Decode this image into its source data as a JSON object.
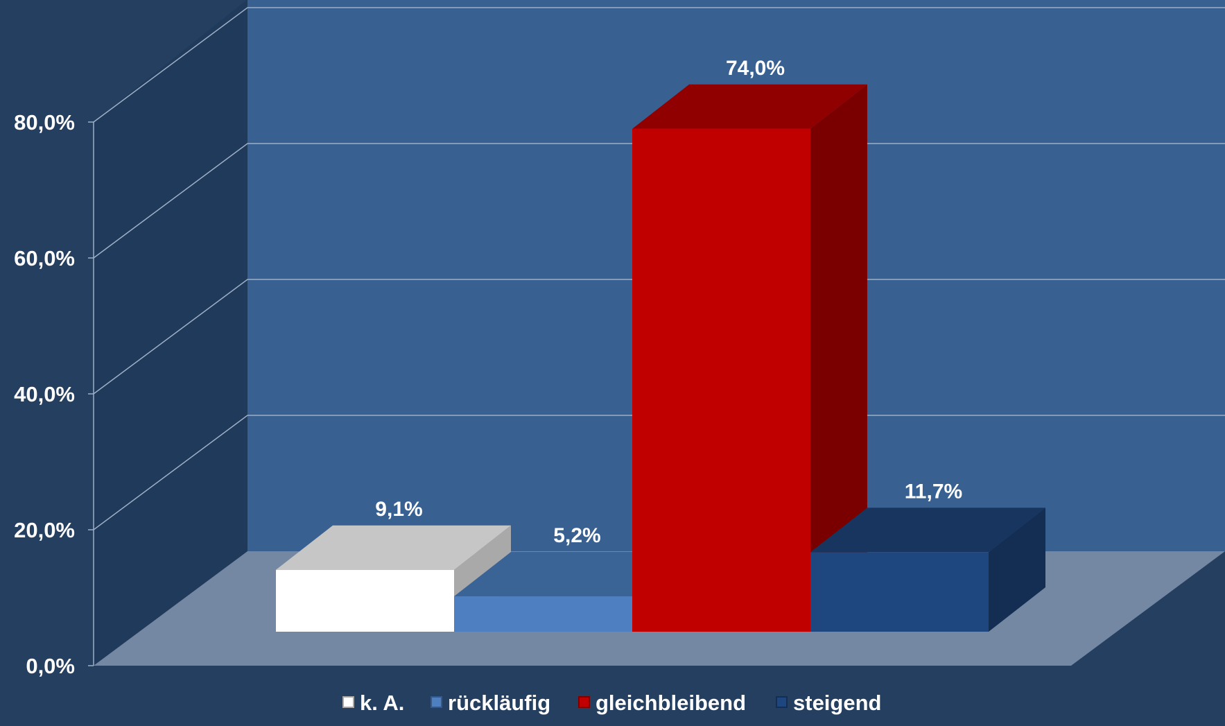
{
  "chart_data": {
    "type": "bar",
    "title": "",
    "xlabel": "",
    "ylabel": "",
    "categories": [
      "k. A.",
      "rückläufig",
      "gleichbleibend",
      "steigend"
    ],
    "values": [
      9.1,
      5.2,
      74.0,
      11.7
    ],
    "value_labels": [
      "9,1%",
      "5,2%",
      "74,0%",
      "11,7%"
    ],
    "ylim": [
      0,
      80
    ],
    "y_ticks": [
      {
        "value": 0,
        "label": "0,0%"
      },
      {
        "value": 20,
        "label": "20,0%"
      },
      {
        "value": 40,
        "label": "40,0%"
      },
      {
        "value": 60,
        "label": "60,0%"
      },
      {
        "value": 80,
        "label": "80,0%"
      }
    ],
    "grid": true,
    "three_d": true,
    "legend": {
      "position": "bottom",
      "entries": [
        "k. A.",
        "rückläufig",
        "gleichbleibend",
        "steigend"
      ]
    },
    "colors": {
      "background": "#253f61",
      "back_wall": "#386192",
      "side_wall": "#203a5b",
      "floor": "#7487a3",
      "gridline": "#9db0c6",
      "series": [
        {
          "front": "#ffffff",
          "top": "#c6c6c6",
          "side": "#a9a9a9"
        },
        {
          "front": "#4d7fc1",
          "top": "#3b6496",
          "side": "#35598a"
        },
        {
          "front": "#c00000",
          "top": "#900000",
          "side": "#7a0000"
        },
        {
          "front": "#1f477f",
          "top": "#17355e",
          "side": "#132e52"
        }
      ]
    }
  }
}
